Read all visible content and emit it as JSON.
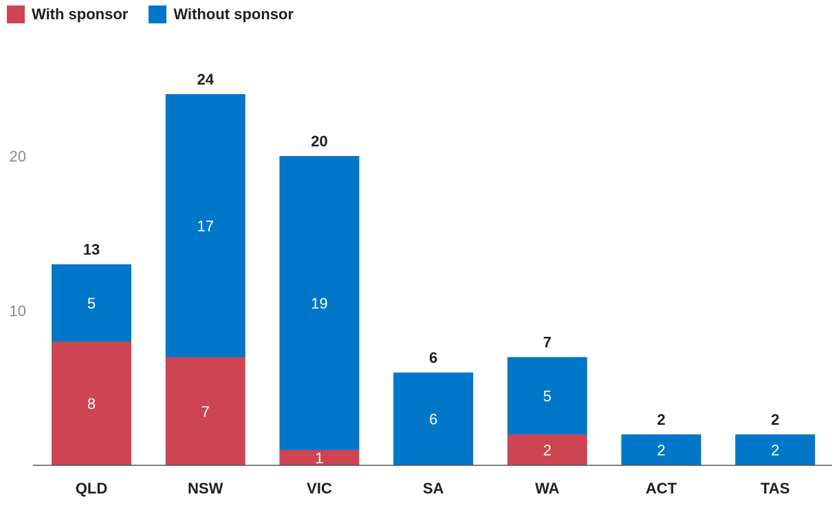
{
  "legend": {
    "items": [
      {
        "label": "With sponsor",
        "color": "#cd4553"
      },
      {
        "label": "Without sponsor",
        "color": "#0077c8"
      }
    ]
  },
  "chart_data": {
    "type": "bar",
    "stacked": true,
    "categories": [
      "QLD",
      "NSW",
      "VIC",
      "SA",
      "WA",
      "ACT",
      "TAS"
    ],
    "series": [
      {
        "name": "With sponsor",
        "color": "#cd4553",
        "values": [
          8,
          7,
          1,
          0,
          2,
          0,
          0
        ]
      },
      {
        "name": "Without sponsor",
        "color": "#0077c8",
        "values": [
          5,
          17,
          19,
          6,
          5,
          2,
          2
        ]
      }
    ],
    "totals": [
      13,
      24,
      20,
      6,
      7,
      2,
      2
    ],
    "yticks": [
      10,
      20
    ],
    "ylim": [
      0,
      25
    ],
    "grid": false,
    "legend_position": "top-left",
    "title": "",
    "xlabel": "",
    "ylabel": ""
  }
}
